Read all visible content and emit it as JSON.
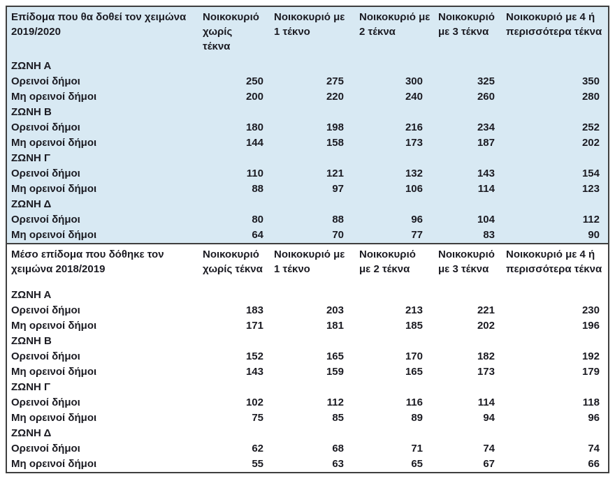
{
  "table": {
    "colors": {
      "highlight_bg": "#d8e9f3",
      "plain_bg": "#ffffff",
      "border": "#3f3f3f",
      "text": "#1b1b22"
    },
    "sections": [
      {
        "title": "Επίδομα που θα δοθεί τον χειμώνα\n2019/2020",
        "columns": [
          "Νοικοκυριό\nχωρίς\nτέκνα",
          "Νοικοκυριό με\n1 τέκνο",
          "Νοικοκυριό με\n2 τέκνα",
          "Νοικοκυριό\nμε 3 τέκνα",
          "Νοικοκυριό με 4 ή\nπερισσότερα τέκνα"
        ],
        "rows": [
          {
            "label": "ΖΩΝΗ Α",
            "values": [
              "",
              "",
              "",
              "",
              ""
            ]
          },
          {
            "label": "Ορεινοί δήμοι",
            "values": [
              "250",
              "275",
              "300",
              "325",
              "350"
            ]
          },
          {
            "label": "Μη ορεινοί δήμοι",
            "values": [
              "200",
              "220",
              "240",
              "260",
              "280"
            ]
          },
          {
            "label": "ΖΩΝΗ Β",
            "values": [
              "",
              "",
              "",
              "",
              ""
            ]
          },
          {
            "label": "Ορεινοί δήμοι",
            "values": [
              "180",
              "198",
              "216",
              "234",
              "252"
            ]
          },
          {
            "label": "Μη ορεινοί δήμοι",
            "values": [
              "144",
              "158",
              "173",
              "187",
              "202"
            ]
          },
          {
            "label": "ΖΩΝΗ Γ",
            "values": [
              "",
              "",
              "",
              "",
              ""
            ]
          },
          {
            "label": "Ορεινοί δήμοι",
            "values": [
              "110",
              "121",
              "132",
              "143",
              "154"
            ]
          },
          {
            "label": "Μη ορεινοί δήμοι",
            "values": [
              "88",
              "97",
              "106",
              "114",
              "123"
            ]
          },
          {
            "label": "ΖΩΝΗ Δ",
            "values": [
              "",
              "",
              "",
              "",
              ""
            ]
          },
          {
            "label": "Ορεινοί δήμοι",
            "values": [
              "80",
              "88",
              "96",
              "104",
              "112"
            ]
          },
          {
            "label": "Μη ορεινοί δήμοι",
            "values": [
              "64",
              "70",
              "77",
              "83",
              "90"
            ]
          }
        ]
      },
      {
        "title": "Μέσο επίδομα που δόθηκε τον\nχειμώνα 2018/2019",
        "columns": [
          "Νοικοκυριό\nχωρίς τέκνα",
          "Νοικοκυριό με\n1 τέκνο",
          "Νοικοκυριό\nμε 2 τέκνα",
          "Νοικοκυριό\nμε 3 τέκνα",
          "Νοικοκυριό με 4 ή\nπερισσότερα τέκνα"
        ],
        "rows": [
          {
            "label": "ΖΩΝΗ Α",
            "values": [
              "",
              "",
              "",
              "",
              ""
            ]
          },
          {
            "label": "Ορεινοί δήμοι",
            "values": [
              "183",
              "203",
              "213",
              "221",
              "230"
            ]
          },
          {
            "label": "Μη ορεινοί δήμοι",
            "values": [
              "171",
              "181",
              "185",
              "202",
              "196"
            ]
          },
          {
            "label": "ΖΩΝΗ Β",
            "values": [
              "",
              "",
              "",
              "",
              ""
            ]
          },
          {
            "label": "Ορεινοί δήμοι",
            "values": [
              "152",
              "165",
              "170",
              "182",
              "192"
            ]
          },
          {
            "label": "Μη ορεινοί δήμοι",
            "values": [
              "143",
              "159",
              "165",
              "173",
              "179"
            ]
          },
          {
            "label": "ΖΩΝΗ Γ",
            "values": [
              "",
              "",
              "",
              "",
              ""
            ]
          },
          {
            "label": "Ορεινοί δήμοι",
            "values": [
              "102",
              "112",
              "116",
              "114",
              "118"
            ]
          },
          {
            "label": "Μη ορεινοί δήμοι",
            "values": [
              "75",
              "85",
              "89",
              "94",
              "96"
            ]
          },
          {
            "label": "ΖΩΝΗ Δ",
            "values": [
              "",
              "",
              "",
              "",
              ""
            ]
          },
          {
            "label": "Ορεινοί δήμοι",
            "values": [
              "62",
              "68",
              "71",
              "74",
              "74"
            ]
          },
          {
            "label": "Μη ορεινοί δήμοι",
            "values": [
              "55",
              "63",
              "65",
              "67",
              "66"
            ]
          }
        ]
      }
    ]
  }
}
